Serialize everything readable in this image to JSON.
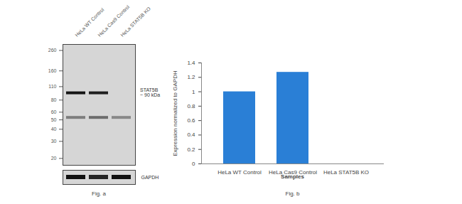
{
  "chart_data": [
    {
      "type": "blot",
      "caption": "Fig. a",
      "categories": [
        "HeLa WT Control",
        "HeLa Cas9 Control",
        "HeLa STAT5B KO"
      ],
      "log": "y",
      "ylim": [
        17,
        300
      ],
      "yticks": [
        260,
        160,
        110,
        80,
        60,
        50,
        40,
        30,
        20
      ],
      "bands": [
        {
          "kda": 95,
          "intensity": [
            1,
            0.95,
            0
          ],
          "annotation": [
            "STAT5B",
            "~ 90 kDa"
          ]
        },
        {
          "kda": 53,
          "intensity": [
            0.45,
            0.55,
            0.4
          ]
        }
      ],
      "loading_control": {
        "label": "GAPDH",
        "intensity": [
          1,
          0.9,
          1
        ]
      }
    },
    {
      "type": "bar",
      "caption": "Fig. b",
      "categories": [
        "HeLa WT Control",
        "HeLa Cas9 Control",
        "HeLa STAT5B KO"
      ],
      "values": [
        1,
        1.27,
        0
      ],
      "color": "#2a7fd6",
      "ylim": [
        0,
        1.4
      ],
      "yticks": [
        0,
        0.2,
        0.4,
        0.6,
        0.8,
        1,
        1.2,
        1.4
      ],
      "xlabel": "Samples",
      "ylabel": "Expression normalized to GAPDH"
    }
  ]
}
